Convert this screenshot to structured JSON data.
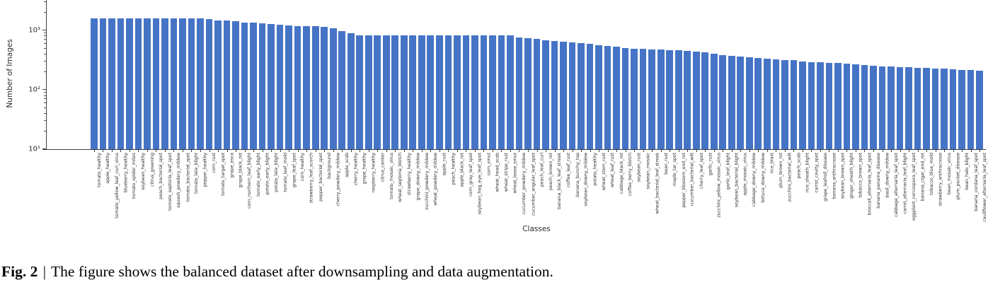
{
  "figure": {
    "caption": {
      "label": "Fig. 2",
      "separator": "|",
      "text": "The figure shows the balanced dataset after downsampling and data augmentation."
    }
  },
  "chart_data": {
    "type": "bar",
    "title": "",
    "xlabel": "Classes",
    "ylabel": "Number of Images",
    "yscale": "log",
    "ylim": [
      10,
      3162
    ],
    "grid": false,
    "legend": "none",
    "bar_color": "#4574C6",
    "yticks": [
      {
        "value": 10,
        "label": "10¹"
      },
      {
        "value": 100,
        "label": "10²"
      },
      {
        "value": 1000,
        "label": "10³"
      }
    ],
    "categories": [
      "tomato_healthy",
      "apple_healthy",
      "tomato_yellow_leaf_curl_virus",
      "blueberry_healthy",
      "tomato_spider_mites",
      "soybean_healthy",
      "citrus_greening",
      "peach_bacterial_spot",
      "tomato_septoria_leaf_spot",
      "squash_powdery_mildew",
      "tomato_bacterial_spot",
      "tomato_late_blight",
      "pepper_healthy",
      "corn_rust",
      "tomato_target_spot",
      "grape_esca",
      "grape_black_rot",
      "corn_northern_leaf_blight",
      "tomato_early_blight",
      "potato_early_blight",
      "potato_late_blight",
      "tomato_leaf_mold",
      "grape_leaf_spot",
      "corn_healthy",
      "strawberry_leaf_scorch",
      "pepper_bacterial_spot",
      "background",
      "cherry_powdery_mildew",
      "apple_scab",
      "cherry_healthy",
      "grape_healthy",
      "raspberry_healthy",
      "citrus_canker",
      "tomato_mosaic_virus",
      "wheat_septoria_blotch",
      "strawberry_healthy",
      "grape_downy_mildew",
      "zucchini_powdery_mildew",
      "wheat_powdery_mildew",
      "apple_rust",
      "peach_healthy",
      "apple_black_rot",
      "corn_gray_leaf_spot",
      "soybean_frog_eye_leaf_spot",
      "corn_smut",
      "wheat_head_scab",
      "wheat_stripe_rust",
      "wheat_loose_smut",
      "cucumber_powdery_mildew",
      "cucumber_angular_leaf_spot",
      "peach_leaf_curl",
      "peach_brown_rot",
      "banana_black_leaf_streak",
      "coffee_leaf_rust",
      "banana_bunchy_top",
      "soybean_downy_mildew",
      "potato_healthy",
      "wheat_stem_rust",
      "wheat_leaf_rust",
      "cabbage_black_rot",
      "coffee_berry_blotch",
      "soybean_rust",
      "soybean_mosaic",
      "wheat_bacterial_leaf_streak",
      "bean_rust",
      "maple_tar_spot",
      "pepper_blossom_end_rot",
      "cucumber_bacterial_wilt",
      "cherry_leaf_spot",
      "garlic_rust",
      "zucchini_yellow_mosaic_virus",
      "garlic_leaf_blight",
      "soybean_bacterial_blight",
      "apple_mosaic_virus",
      "cabbage_downy_mildew",
      "lettuce_downy_mildew",
      "rice_blast",
      "plum_brown_rot",
      "zucchini_bacterial_wilt",
      "peach_scab",
      "rice_sheath_blight",
      "carrot_cavity_spot",
      "grape_leafroll_disease",
      "banana_anthracnose",
      "soybean_brown_spot",
      "ginger_sheath_blight",
      "tobacco_brown_spot",
      "broccoli_alternaria_leaf_spot",
      "banana_panama_disease",
      "basil_downy_mildew",
      "cabbage_alternaria_leaf_spot",
      "carrot_alternaria_leaf_blight",
      "eggplant_cercospora_leaf_spot",
      "banana_cigar_end_rot",
      "tobacco_blue_mold",
      "strawberry_anthracnose",
      "bean_mosaic_virus",
      "plum_pocket_disease",
      "bean_halo_blight",
      "banana_cordana_leaf_spot",
      "cauliflower_alternaria_leaf_spot"
    ],
    "values": [
      1600,
      1600,
      1600,
      1600,
      1600,
      1600,
      1600,
      1600,
      1600,
      1600,
      1600,
      1600,
      1600,
      1530,
      1460,
      1440,
      1410,
      1350,
      1330,
      1290,
      1260,
      1240,
      1190,
      1180,
      1170,
      1160,
      1140,
      1090,
      970,
      880,
      810,
      810,
      810,
      810,
      810,
      810,
      810,
      810,
      810,
      810,
      810,
      810,
      810,
      810,
      810,
      810,
      810,
      810,
      760,
      735,
      715,
      670,
      650,
      635,
      620,
      605,
      585,
      565,
      540,
      530,
      495,
      490,
      485,
      480,
      472,
      466,
      456,
      448,
      432,
      426,
      398,
      382,
      372,
      362,
      346,
      342,
      336,
      322,
      318,
      312,
      300,
      292,
      287,
      284,
      281,
      271,
      266,
      259,
      251,
      249,
      245,
      239,
      237,
      235,
      231,
      227,
      225,
      221,
      217,
      215,
      211
    ]
  }
}
